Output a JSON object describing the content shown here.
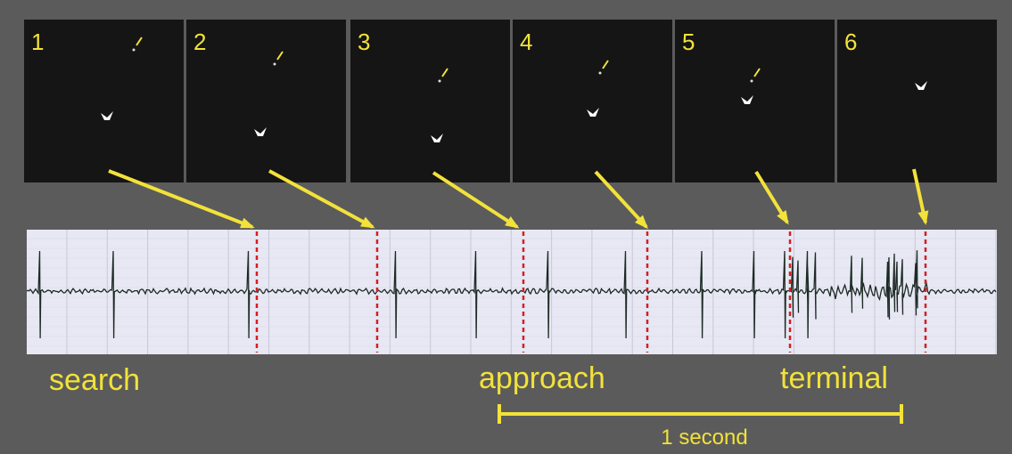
{
  "panels": [
    {
      "label": "1"
    },
    {
      "label": "2"
    },
    {
      "label": "3"
    },
    {
      "label": "4"
    },
    {
      "label": "5"
    },
    {
      "label": "6"
    }
  ],
  "phases": {
    "search": "search",
    "approach": "approach",
    "terminal": "terminal"
  },
  "scale_bar": {
    "label": "1 second"
  }
}
